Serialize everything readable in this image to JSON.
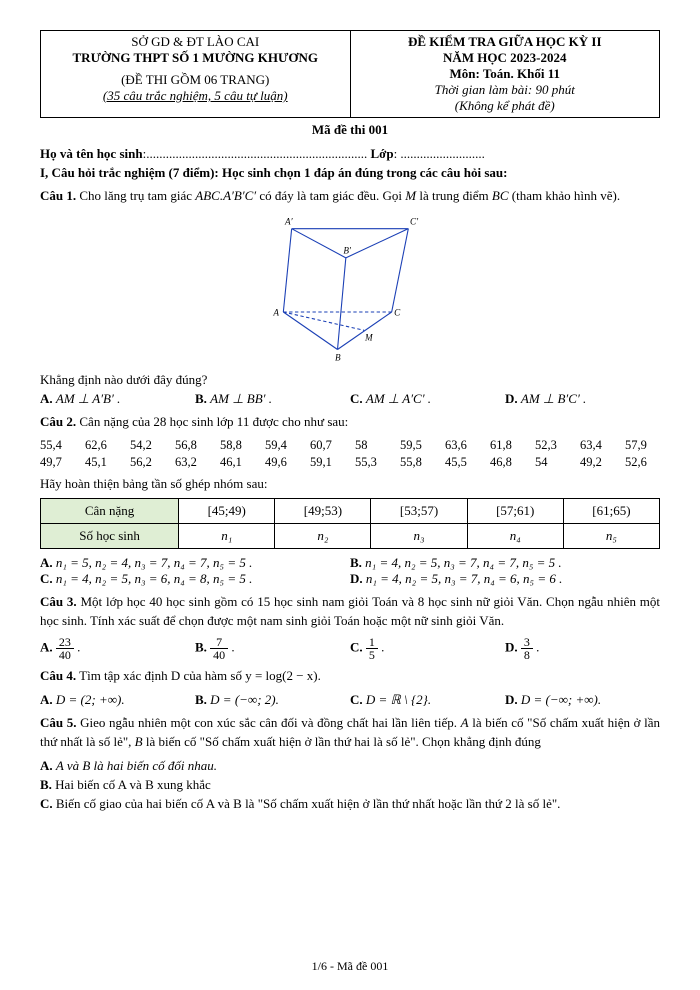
{
  "header": {
    "left_line1": "SỞ GD & ĐT LÀO CAI",
    "left_line2": "TRƯỜNG THPT SỐ 1 MƯỜNG KHƯƠNG",
    "left_line3": "(ĐỀ THI GỒM 06 TRANG)",
    "left_line4": "(35 câu trắc nghiệm, 5 câu tự luận)",
    "right_line1": "ĐỀ KIỂM TRA GIỮA HỌC KỲ II",
    "right_line2": "NĂM HỌC 2023-2024",
    "right_line3": "Môn: Toán.  Khối 11",
    "right_line4": "Thời gian làm bài: 90 phút",
    "right_line5": "(Không kể phát đề)"
  },
  "exam_code": "Mã đề thi 001",
  "name_label": "Họ và tên học sinh",
  "name_dots": ":....................................................................",
  "class_label": "Lớp",
  "class_dots": ": ..........................",
  "section1_title": "I, Câu hỏi trắc nghiệm (7 điểm): Học sinh chọn 1 đáp án đúng trong các câu hỏi sau:",
  "q1": {
    "label": "Câu 1.",
    "text_a": "Cho lăng trụ tam giác ",
    "prism": "ABC.A′B′C′",
    "text_b": " có đáy là tam giác đều. Gọi ",
    "M": "M",
    "text_c": " là trung điểm ",
    "BC": "BC",
    "text_d": " (tham khảo hình vẽ).",
    "prompt": "Khẳng định nào dưới đây đúng?",
    "A": "AM ⊥ A′B′ .",
    "B": "AM ⊥ BB′ .",
    "C": "AM ⊥ A′C′ .",
    "D": "AM ⊥ B′C′ ."
  },
  "q2": {
    "label": "Câu 2.",
    "text": "Cân nặng của 28 học sinh lớp 11 được cho như sau:",
    "data": [
      "55,4",
      "62,6",
      "54,2",
      "56,8",
      "58,8",
      "59,4",
      "60,7",
      "58",
      "59,5",
      "63,6",
      "61,8",
      "52,3",
      "63,4",
      "57,9",
      "49,7",
      "45,1",
      "56,2",
      "63,2",
      "46,1",
      "49,6",
      "59,1",
      "55,3",
      "55,8",
      "45,5",
      "46,8",
      "54",
      "49,2",
      "52,6"
    ],
    "prompt": "Hãy hoàn thiện bảng tần số ghép nhóm sau:",
    "row1": "Cân nặng",
    "row2": "Số học sinh",
    "intervals": [
      "[45;49)",
      "[49;53)",
      "[53;57)",
      "[57;61)",
      "[61;65)"
    ],
    "ns": [
      "n₁",
      "n₂",
      "n₃",
      "n₄",
      "n₅"
    ],
    "A": "n₁ = 5, n₂ = 4, n₃ = 7, n₄ = 7, n₅ = 5 .",
    "B": "n₁ = 4, n₂ = 5, n₃ = 7, n₄ = 7, n₅ = 5 .",
    "C": "n₁ = 4, n₂ = 5, n₃ = 6, n₄ = 8, n₅ = 5 .",
    "D": "n₁ = 4, n₂ = 5, n₃ = 7, n₄ = 6, n₅ = 6 ."
  },
  "q3": {
    "label": "Câu 3.",
    "text": "Một lớp học 40 học sinh gồm có 15 học sinh nam giỏi Toán và 8 học sinh nữ giỏi Văn. Chọn ngẫu nhiên một học sinh. Tính xác suất để chọn được một nam sinh giỏi Toán hoặc một nữ sinh giỏi Văn.",
    "A_n": "23",
    "A_d": "40",
    "B_n": "7",
    "B_d": "40",
    "C_n": "1",
    "C_d": "5",
    "D_n": "3",
    "D_d": "8"
  },
  "q4": {
    "label": "Câu 4.",
    "text": "Tìm tập xác định D của hàm số  y = log(2 − x).",
    "A": "D = (2; +∞).",
    "B": "D = (−∞; 2).",
    "C": "D = ℝ \\ {2}.",
    "D": "D = (−∞; +∞)."
  },
  "q5": {
    "label": "Câu 5.",
    "text_a": "Gieo ngẫu nhiên một con xúc sắc cân đối và đồng chất hai lần liên tiếp. ",
    "A_sym": "A",
    "text_b": " là biến cố \"Số chấm xuất hiện ở lần thứ nhất là số lẻ\", ",
    "B_sym": "B",
    "text_c": " là biến cố \"Số chấm xuất hiện ở lần thứ hai là số lẻ\". Chọn khẳng định đúng",
    "optA": "A và B là hai biến cố đối nhau.",
    "optB": "Hai biến cố A và B xung khắc",
    "optC": "Biến cố giao của hai biến cố A và B là \"Số chấm xuất hiện ở lần thứ nhất hoặc lần thứ 2 là số lẻ\"."
  },
  "footer": "1/6 - Mã đề 001",
  "diagram_labels": {
    "Ap": "A′",
    "Bp": "B′",
    "Cp": "C′",
    "A": "A",
    "B": "B",
    "C": "C",
    "M": "M"
  },
  "colors": {
    "line": "#1a3fb5",
    "dash": "#1a3fb5"
  }
}
